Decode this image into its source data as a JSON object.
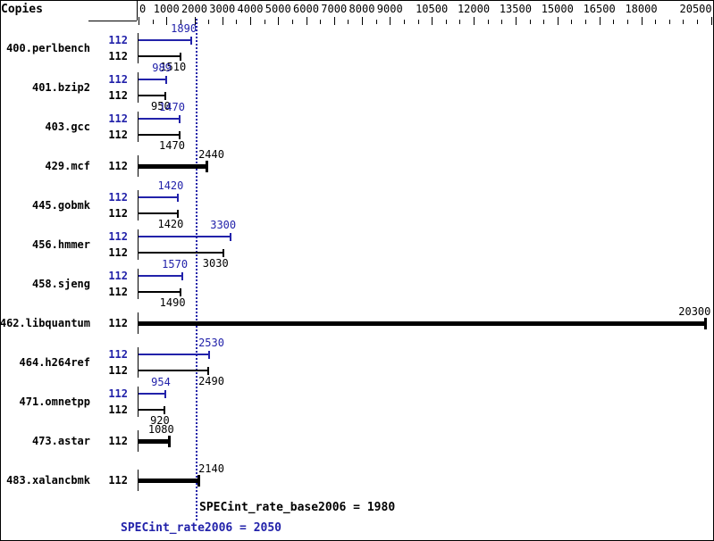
{
  "header": {
    "copies_label": "Copies"
  },
  "colors": {
    "peak": "#2222aa",
    "base": "#000000",
    "background": "#ffffff"
  },
  "axis": {
    "tick_values": [
      0,
      1000,
      2000,
      3000,
      4000,
      5000,
      6000,
      7000,
      8000,
      9000,
      10500,
      12000,
      13500,
      15000,
      16500,
      18000,
      20500
    ],
    "tick_labels": [
      "0",
      "1000",
      "2000",
      "3000",
      "4000",
      "5000",
      "6000",
      "7000",
      "8000",
      "9000",
      "10500",
      "12000",
      "13500",
      "15000",
      "16500",
      "18000",
      "20500"
    ],
    "minor_tick_interval": 500,
    "max": 20500
  },
  "benchmarks": [
    {
      "name": "400.perlbench",
      "runs": [
        {
          "kind": "peak",
          "copies": "112",
          "value": 1890,
          "label": "1890"
        },
        {
          "kind": "base",
          "copies": "112",
          "value": 1510,
          "label": "1510"
        }
      ]
    },
    {
      "name": "401.bzip2",
      "runs": [
        {
          "kind": "peak",
          "copies": "112",
          "value": 989,
          "label": "989"
        },
        {
          "kind": "base",
          "copies": "112",
          "value": 950,
          "label": "950"
        }
      ]
    },
    {
      "name": "403.gcc",
      "runs": [
        {
          "kind": "peak",
          "copies": "112",
          "value": 1470,
          "label": "1470"
        },
        {
          "kind": "base",
          "copies": "112",
          "value": 1470,
          "label": "1470"
        }
      ]
    },
    {
      "name": "429.mcf",
      "runs": [
        {
          "kind": "single",
          "copies": "112",
          "value": 2440,
          "label": "2440"
        }
      ]
    },
    {
      "name": "445.gobmk",
      "runs": [
        {
          "kind": "peak",
          "copies": "112",
          "value": 1420,
          "label": "1420"
        },
        {
          "kind": "base",
          "copies": "112",
          "value": 1420,
          "label": "1420"
        }
      ]
    },
    {
      "name": "456.hmmer",
      "runs": [
        {
          "kind": "peak",
          "copies": "112",
          "value": 3300,
          "label": "3300"
        },
        {
          "kind": "base",
          "copies": "112",
          "value": 3030,
          "label": "3030"
        }
      ]
    },
    {
      "name": "458.sjeng",
      "runs": [
        {
          "kind": "peak",
          "copies": "112",
          "value": 1570,
          "label": "1570"
        },
        {
          "kind": "base",
          "copies": "112",
          "value": 1490,
          "label": "1490"
        }
      ]
    },
    {
      "name": "462.libquantum",
      "runs": [
        {
          "kind": "single",
          "copies": "112",
          "value": 20300,
          "label": "20300"
        }
      ]
    },
    {
      "name": "464.h264ref",
      "runs": [
        {
          "kind": "peak",
          "copies": "112",
          "value": 2530,
          "label": "2530"
        },
        {
          "kind": "base",
          "copies": "112",
          "value": 2490,
          "label": "2490"
        }
      ]
    },
    {
      "name": "471.omnetpp",
      "runs": [
        {
          "kind": "peak",
          "copies": "112",
          "value": 954,
          "label": "954"
        },
        {
          "kind": "base",
          "copies": "112",
          "value": 920,
          "label": "920"
        }
      ]
    },
    {
      "name": "473.astar",
      "runs": [
        {
          "kind": "single",
          "copies": "112",
          "value": 1080,
          "label": "1080"
        }
      ]
    },
    {
      "name": "483.xalancbmk",
      "runs": [
        {
          "kind": "single",
          "copies": "112",
          "value": 2140,
          "label": "2140"
        }
      ]
    }
  ],
  "summary": {
    "base_label": "SPECint_rate_base2006 = 1980",
    "base_value": 1980,
    "peak_label": "SPECint_rate2006 = 2050",
    "peak_value": 2050
  },
  "chart_data": {
    "type": "bar",
    "orientation": "horizontal",
    "categories": [
      "400.perlbench",
      "401.bzip2",
      "403.gcc",
      "429.mcf",
      "445.gobmk",
      "456.hmmer",
      "458.sjeng",
      "462.libquantum",
      "464.h264ref",
      "471.omnetpp",
      "473.astar",
      "483.xalancbmk"
    ],
    "copies_per_benchmark": [
      112,
      112,
      112,
      112,
      112,
      112,
      112,
      112,
      112,
      112,
      112,
      112
    ],
    "series": [
      {
        "name": "peak",
        "color": "#2222aa",
        "values": [
          1890,
          989,
          1470,
          2440,
          1420,
          3300,
          1570,
          20300,
          2530,
          954,
          1080,
          2140
        ]
      },
      {
        "name": "base",
        "color": "#000000",
        "values": [
          1510,
          950,
          1470,
          2440,
          1420,
          3030,
          1490,
          20300,
          2490,
          920,
          1080,
          2140
        ]
      }
    ],
    "merged_single_bar": [
      false,
      false,
      false,
      true,
      false,
      false,
      false,
      true,
      false,
      false,
      true,
      true
    ],
    "xlim": [
      0,
      20500
    ],
    "x_tick_labels": [
      "0",
      "1000",
      "2000",
      "3000",
      "4000",
      "5000",
      "6000",
      "7000",
      "8000",
      "9000",
      "10500",
      "12000",
      "13500",
      "15000",
      "16500",
      "18000",
      "20500"
    ],
    "minor_tick_interval": 500,
    "grid": false,
    "legend_position": "none",
    "reference_lines": [
      {
        "label": "SPECint_rate_base2006 = 1980",
        "value": 1980,
        "color": "#000000"
      },
      {
        "label": "SPECint_rate2006 = 2050",
        "value": 2050,
        "color": "#2222aa",
        "style": "dotted"
      }
    ]
  }
}
